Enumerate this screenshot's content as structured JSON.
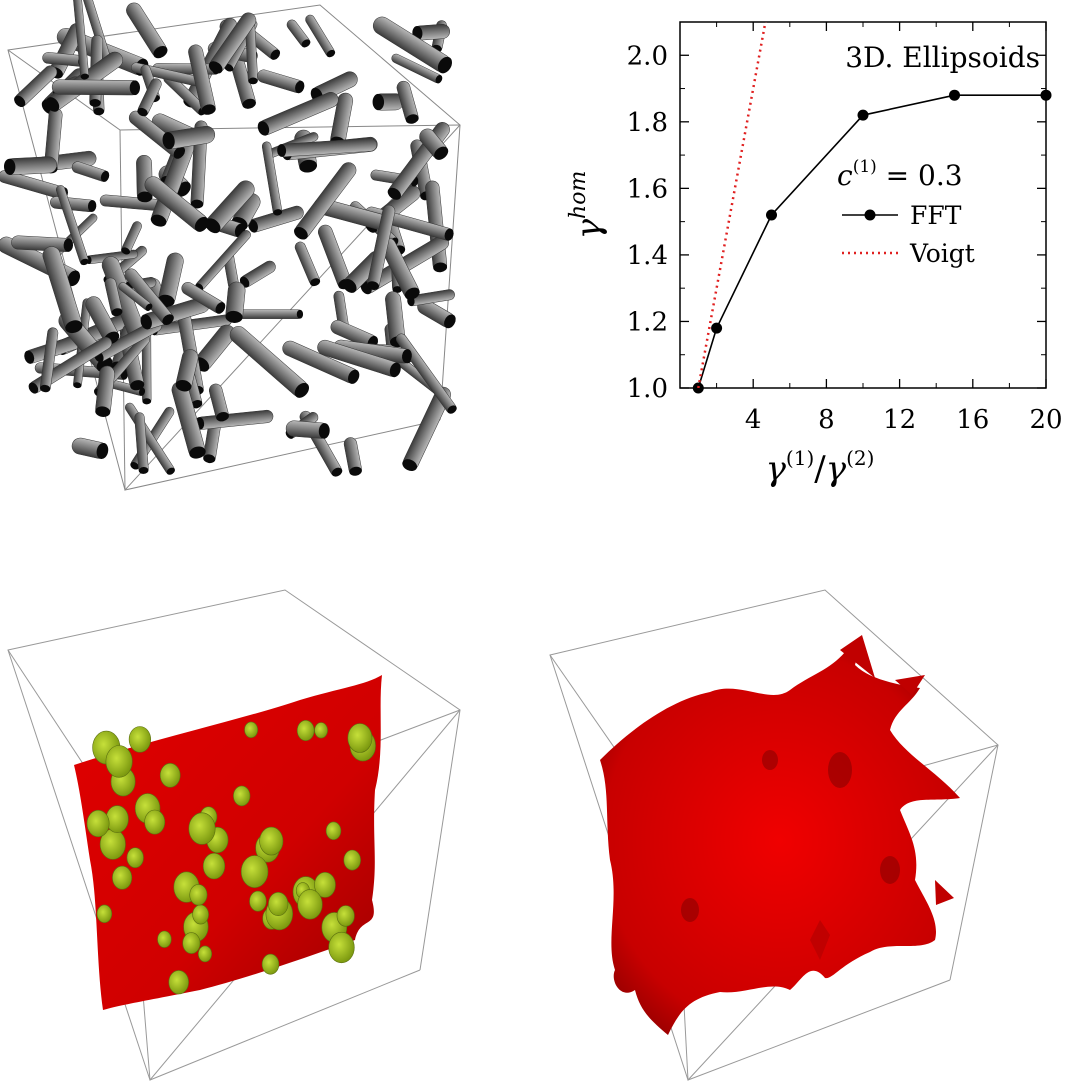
{
  "chart_data": {
    "type": "line",
    "title": "3D. Ellipsoids",
    "annotation": "c^(1) = 0.3",
    "xlabel": "γ(1)/γ(2)",
    "ylabel": "γhom",
    "xlim": [
      0,
      20
    ],
    "ylim": [
      1.0,
      2.1
    ],
    "xticks": [
      4,
      8,
      12,
      16,
      20
    ],
    "yticks": [
      1.0,
      1.2,
      1.4,
      1.6,
      1.8,
      2.0
    ],
    "grid": false,
    "legend_position": "right",
    "series": [
      {
        "name": "FFT",
        "style": "solid-with-markers",
        "color": "#000000",
        "x": [
          1,
          2,
          5,
          10,
          15,
          20
        ],
        "y": [
          1.0,
          1.18,
          1.52,
          1.82,
          1.88,
          1.88
        ]
      },
      {
        "name": "Voigt",
        "style": "dotted",
        "color": "#e02020",
        "x": [
          1,
          4.7
        ],
        "y": [
          1.0,
          2.11
        ]
      }
    ]
  },
  "images": {
    "top_left": "gray-ellipsoids-in-cube",
    "bottom_left": "red-surface-with-green-inclusions",
    "bottom_right": "red-surface-in-cube"
  }
}
